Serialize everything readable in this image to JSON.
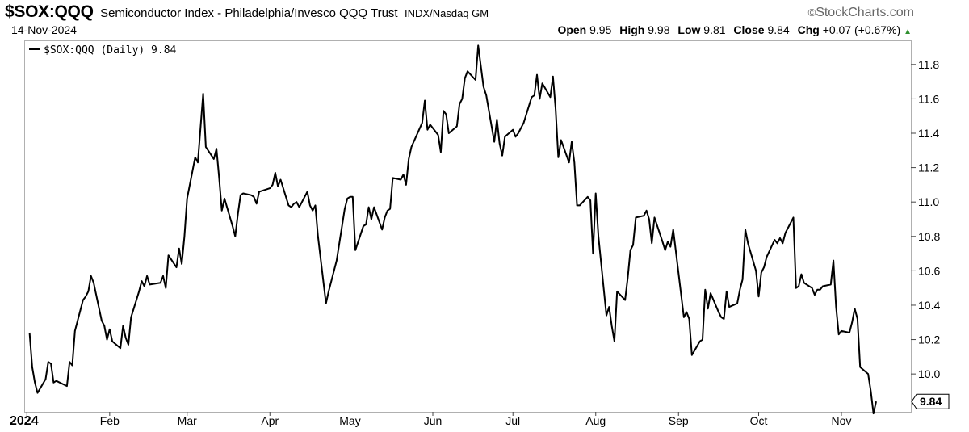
{
  "header": {
    "symbol": "$SOX:QQQ",
    "description": "Semiconductor Index - Philadelphia/Invesco QQQ Trust",
    "exchange": "INDX/Nasdaq GM",
    "brand": "StockCharts.com",
    "brand_mark": "©",
    "date": "14-Nov-2024",
    "open_label": "Open",
    "open": "9.95",
    "high_label": "High",
    "high": "9.98",
    "low_label": "Low",
    "low": "9.81",
    "close_label": "Close",
    "close": "9.84",
    "chg_label": "Chg",
    "chg": "+0.07 (+0.67%)",
    "chg_arrow": "▲",
    "up_color": "#2f8f2f"
  },
  "chart_data": {
    "type": "line",
    "legend": "$SOX:QQQ (Daily) 9.84",
    "legend_position": "top-left",
    "last_value_label": "9.84",
    "grid": false,
    "xlabel": "",
    "ylabel": "",
    "ylim": [
      9.78,
      11.94
    ],
    "y_ticks": [
      "11.8",
      "11.6",
      "11.4",
      "11.2",
      "11.0",
      "10.8",
      "10.6",
      "10.4",
      "10.2",
      "10.0"
    ],
    "x_ticks": [
      {
        "label": "2024",
        "date": "2024-01-01",
        "bold": true
      },
      {
        "label": "Feb",
        "date": "2024-02-01"
      },
      {
        "label": "Mar",
        "date": "2024-03-01"
      },
      {
        "label": "Apr",
        "date": "2024-04-01"
      },
      {
        "label": "May",
        "date": "2024-05-01"
      },
      {
        "label": "Jun",
        "date": "2024-06-01"
      },
      {
        "label": "Jul",
        "date": "2024-07-01"
      },
      {
        "label": "Aug",
        "date": "2024-08-01"
      },
      {
        "label": "Sep",
        "date": "2024-09-01"
      },
      {
        "label": "Oct",
        "date": "2024-10-01"
      },
      {
        "label": "Nov",
        "date": "2024-11-01"
      }
    ],
    "x_range": [
      "2023-12-31",
      "2024-11-27"
    ],
    "series": [
      {
        "line_color": "#000000",
        "points": [
          [
            "2024-01-02",
            10.24
          ],
          [
            "2024-01-03",
            10.04
          ],
          [
            "2024-01-04",
            9.95
          ],
          [
            "2024-01-05",
            9.89
          ],
          [
            "2024-01-08",
            9.97
          ],
          [
            "2024-01-09",
            10.07
          ],
          [
            "2024-01-10",
            10.06
          ],
          [
            "2024-01-11",
            9.95
          ],
          [
            "2024-01-12",
            9.96
          ],
          [
            "2024-01-16",
            9.93
          ],
          [
            "2024-01-17",
            10.07
          ],
          [
            "2024-01-18",
            10.05
          ],
          [
            "2024-01-19",
            10.25
          ],
          [
            "2024-01-22",
            10.43
          ],
          [
            "2024-01-23",
            10.45
          ],
          [
            "2024-01-24",
            10.48
          ],
          [
            "2024-01-25",
            10.57
          ],
          [
            "2024-01-26",
            10.53
          ],
          [
            "2024-01-29",
            10.31
          ],
          [
            "2024-01-30",
            10.28
          ],
          [
            "2024-01-31",
            10.2
          ],
          [
            "2024-02-01",
            10.26
          ],
          [
            "2024-02-02",
            10.19
          ],
          [
            "2024-02-05",
            10.15
          ],
          [
            "2024-02-06",
            10.28
          ],
          [
            "2024-02-07",
            10.21
          ],
          [
            "2024-02-08",
            10.17
          ],
          [
            "2024-02-09",
            10.33
          ],
          [
            "2024-02-12",
            10.48
          ],
          [
            "2024-02-13",
            10.54
          ],
          [
            "2024-02-14",
            10.51
          ],
          [
            "2024-02-15",
            10.57
          ],
          [
            "2024-02-16",
            10.52
          ],
          [
            "2024-02-20",
            10.53
          ],
          [
            "2024-02-21",
            10.57
          ],
          [
            "2024-02-22",
            10.5
          ],
          [
            "2024-02-23",
            10.69
          ],
          [
            "2024-02-26",
            10.62
          ],
          [
            "2024-02-27",
            10.73
          ],
          [
            "2024-02-28",
            10.64
          ],
          [
            "2024-02-29",
            10.8
          ],
          [
            "2024-03-01",
            11.02
          ],
          [
            "2024-03-04",
            11.26
          ],
          [
            "2024-03-05",
            11.23
          ],
          [
            "2024-03-06",
            11.43
          ],
          [
            "2024-03-07",
            11.63
          ],
          [
            "2024-03-08",
            11.32
          ],
          [
            "2024-03-11",
            11.25
          ],
          [
            "2024-03-12",
            11.31
          ],
          [
            "2024-03-13",
            11.14
          ],
          [
            "2024-03-14",
            10.95
          ],
          [
            "2024-03-15",
            11.02
          ],
          [
            "2024-03-18",
            10.86
          ],
          [
            "2024-03-19",
            10.8
          ],
          [
            "2024-03-20",
            10.93
          ],
          [
            "2024-03-21",
            11.04
          ],
          [
            "2024-03-22",
            11.05
          ],
          [
            "2024-03-25",
            11.04
          ],
          [
            "2024-03-26",
            11.03
          ],
          [
            "2024-03-27",
            10.99
          ],
          [
            "2024-03-28",
            11.06
          ],
          [
            "2024-04-01",
            11.08
          ],
          [
            "2024-04-02",
            11.1
          ],
          [
            "2024-04-03",
            11.17
          ],
          [
            "2024-04-04",
            11.09
          ],
          [
            "2024-04-05",
            11.13
          ],
          [
            "2024-04-08",
            10.98
          ],
          [
            "2024-04-09",
            10.97
          ],
          [
            "2024-04-10",
            10.99
          ],
          [
            "2024-04-11",
            11.0
          ],
          [
            "2024-04-12",
            10.97
          ],
          [
            "2024-04-15",
            11.06
          ],
          [
            "2024-04-16",
            10.98
          ],
          [
            "2024-04-17",
            10.95
          ],
          [
            "2024-04-18",
            10.98
          ],
          [
            "2024-04-19",
            10.8
          ],
          [
            "2024-04-22",
            10.41
          ],
          [
            "2024-04-23",
            10.48
          ],
          [
            "2024-04-24",
            10.54
          ],
          [
            "2024-04-25",
            10.6
          ],
          [
            "2024-04-26",
            10.66
          ],
          [
            "2024-04-29",
            10.96
          ],
          [
            "2024-04-30",
            11.02
          ],
          [
            "2024-05-01",
            11.03
          ],
          [
            "2024-05-02",
            11.03
          ],
          [
            "2024-05-03",
            10.72
          ],
          [
            "2024-05-06",
            10.86
          ],
          [
            "2024-05-07",
            10.87
          ],
          [
            "2024-05-08",
            10.97
          ],
          [
            "2024-05-09",
            10.9
          ],
          [
            "2024-05-10",
            10.97
          ],
          [
            "2024-05-13",
            10.84
          ],
          [
            "2024-05-14",
            10.91
          ],
          [
            "2024-05-15",
            10.95
          ],
          [
            "2024-05-16",
            10.96
          ],
          [
            "2024-05-17",
            11.14
          ],
          [
            "2024-05-20",
            11.13
          ],
          [
            "2024-05-21",
            11.16
          ],
          [
            "2024-05-22",
            11.1
          ],
          [
            "2024-05-23",
            11.25
          ],
          [
            "2024-05-24",
            11.32
          ],
          [
            "2024-05-28",
            11.46
          ],
          [
            "2024-05-29",
            11.59
          ],
          [
            "2024-05-30",
            11.42
          ],
          [
            "2024-05-31",
            11.45
          ],
          [
            "2024-06-03",
            11.39
          ],
          [
            "2024-06-04",
            11.29
          ],
          [
            "2024-06-05",
            11.53
          ],
          [
            "2024-06-06",
            11.51
          ],
          [
            "2024-06-07",
            11.4
          ],
          [
            "2024-06-10",
            11.44
          ],
          [
            "2024-06-11",
            11.57
          ],
          [
            "2024-06-12",
            11.6
          ],
          [
            "2024-06-13",
            11.72
          ],
          [
            "2024-06-14",
            11.76
          ],
          [
            "2024-06-17",
            11.71
          ],
          [
            "2024-06-18",
            11.91
          ],
          [
            "2024-06-20",
            11.67
          ],
          [
            "2024-06-21",
            11.62
          ],
          [
            "2024-06-24",
            11.35
          ],
          [
            "2024-06-25",
            11.48
          ],
          [
            "2024-06-26",
            11.34
          ],
          [
            "2024-06-27",
            11.27
          ],
          [
            "2024-06-28",
            11.38
          ],
          [
            "2024-07-01",
            11.42
          ],
          [
            "2024-07-02",
            11.38
          ],
          [
            "2024-07-03",
            11.4
          ],
          [
            "2024-07-05",
            11.46
          ],
          [
            "2024-07-08",
            11.61
          ],
          [
            "2024-07-09",
            11.62
          ],
          [
            "2024-07-10",
            11.74
          ],
          [
            "2024-07-11",
            11.6
          ],
          [
            "2024-07-12",
            11.69
          ],
          [
            "2024-07-15",
            11.61
          ],
          [
            "2024-07-16",
            11.73
          ],
          [
            "2024-07-17",
            11.54
          ],
          [
            "2024-07-18",
            11.26
          ],
          [
            "2024-07-19",
            11.36
          ],
          [
            "2024-07-22",
            11.23
          ],
          [
            "2024-07-23",
            11.35
          ],
          [
            "2024-07-24",
            11.23
          ],
          [
            "2024-07-25",
            10.98
          ],
          [
            "2024-07-26",
            10.98
          ],
          [
            "2024-07-29",
            11.03
          ],
          [
            "2024-07-30",
            11.01
          ],
          [
            "2024-07-31",
            10.7
          ],
          [
            "2024-08-01",
            11.05
          ],
          [
            "2024-08-02",
            10.8
          ],
          [
            "2024-08-05",
            10.34
          ],
          [
            "2024-08-06",
            10.39
          ],
          [
            "2024-08-07",
            10.28
          ],
          [
            "2024-08-08",
            10.19
          ],
          [
            "2024-08-09",
            10.48
          ],
          [
            "2024-08-12",
            10.43
          ],
          [
            "2024-08-13",
            10.56
          ],
          [
            "2024-08-14",
            10.72
          ],
          [
            "2024-08-15",
            10.75
          ],
          [
            "2024-08-16",
            10.91
          ],
          [
            "2024-08-19",
            10.92
          ],
          [
            "2024-08-20",
            10.95
          ],
          [
            "2024-08-21",
            10.9
          ],
          [
            "2024-08-22",
            10.76
          ],
          [
            "2024-08-23",
            10.91
          ],
          [
            "2024-08-26",
            10.77
          ],
          [
            "2024-08-27",
            10.72
          ],
          [
            "2024-08-28",
            10.77
          ],
          [
            "2024-08-29",
            10.74
          ],
          [
            "2024-08-30",
            10.84
          ],
          [
            "2024-09-03",
            10.33
          ],
          [
            "2024-09-04",
            10.36
          ],
          [
            "2024-09-05",
            10.32
          ],
          [
            "2024-09-06",
            10.11
          ],
          [
            "2024-09-09",
            10.19
          ],
          [
            "2024-09-10",
            10.2
          ],
          [
            "2024-09-11",
            10.49
          ],
          [
            "2024-09-12",
            10.38
          ],
          [
            "2024-09-13",
            10.47
          ],
          [
            "2024-09-16",
            10.36
          ],
          [
            "2024-09-17",
            10.33
          ],
          [
            "2024-09-18",
            10.32
          ],
          [
            "2024-09-19",
            10.48
          ],
          [
            "2024-09-20",
            10.39
          ],
          [
            "2024-09-23",
            10.41
          ],
          [
            "2024-09-24",
            10.49
          ],
          [
            "2024-09-25",
            10.55
          ],
          [
            "2024-09-26",
            10.84
          ],
          [
            "2024-09-27",
            10.76
          ],
          [
            "2024-09-30",
            10.6
          ],
          [
            "2024-10-01",
            10.45
          ],
          [
            "2024-10-02",
            10.59
          ],
          [
            "2024-10-03",
            10.62
          ],
          [
            "2024-10-04",
            10.68
          ],
          [
            "2024-10-07",
            10.78
          ],
          [
            "2024-10-08",
            10.76
          ],
          [
            "2024-10-09",
            10.79
          ],
          [
            "2024-10-10",
            10.76
          ],
          [
            "2024-10-11",
            10.82
          ],
          [
            "2024-10-14",
            10.91
          ],
          [
            "2024-10-15",
            10.5
          ],
          [
            "2024-10-16",
            10.51
          ],
          [
            "2024-10-17",
            10.58
          ],
          [
            "2024-10-18",
            10.53
          ],
          [
            "2024-10-21",
            10.5
          ],
          [
            "2024-10-22",
            10.46
          ],
          [
            "2024-10-23",
            10.49
          ],
          [
            "2024-10-24",
            10.49
          ],
          [
            "2024-10-25",
            10.51
          ],
          [
            "2024-10-28",
            10.52
          ],
          [
            "2024-10-29",
            10.66
          ],
          [
            "2024-10-30",
            10.39
          ],
          [
            "2024-10-31",
            10.23
          ],
          [
            "2024-11-01",
            10.25
          ],
          [
            "2024-11-04",
            10.24
          ],
          [
            "2024-11-05",
            10.3
          ],
          [
            "2024-11-06",
            10.38
          ],
          [
            "2024-11-07",
            10.32
          ],
          [
            "2024-11-08",
            10.04
          ],
          [
            "2024-11-11",
            10.0
          ],
          [
            "2024-11-12",
            9.9
          ],
          [
            "2024-11-13",
            9.77
          ],
          [
            "2024-11-14",
            9.84
          ]
        ]
      }
    ]
  }
}
